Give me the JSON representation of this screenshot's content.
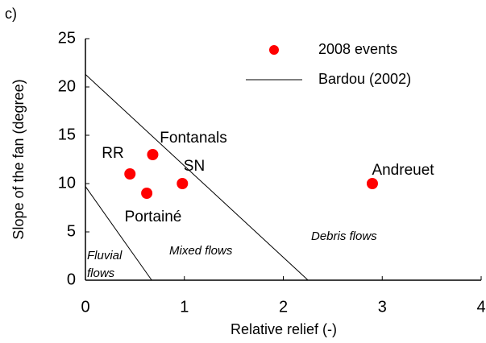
{
  "chart_data": {
    "type": "scatter",
    "panel_label": "c)",
    "xlabel": "Relative relief (-)",
    "ylabel": "Slope of the fan (degree)",
    "xlim": [
      0,
      4
    ],
    "ylim": [
      0,
      25
    ],
    "xticks": [
      0,
      1,
      2,
      3,
      4
    ],
    "yticks": [
      0,
      5,
      10,
      15,
      20,
      25
    ],
    "series": [
      {
        "name": "2008 events",
        "type": "scatter",
        "color": "#ff0000",
        "x": [
          0.45,
          0.62,
          0.68,
          0.98,
          2.9
        ],
        "values": [
          11,
          9,
          13,
          10,
          10
        ],
        "labels": [
          "RR",
          "Portainé",
          "Fontanals",
          "SN",
          "Andreuet"
        ]
      },
      {
        "name": "Bardou (2002)",
        "type": "line",
        "color": "#000000",
        "x": [
          0,
          2.25,
          null,
          0,
          0.67
        ],
        "values": [
          21.3,
          0,
          null,
          9.7,
          0
        ]
      }
    ],
    "annotations": [
      "Fluvial",
      "flows",
      "Mixed flows",
      "Debris flows"
    ]
  }
}
